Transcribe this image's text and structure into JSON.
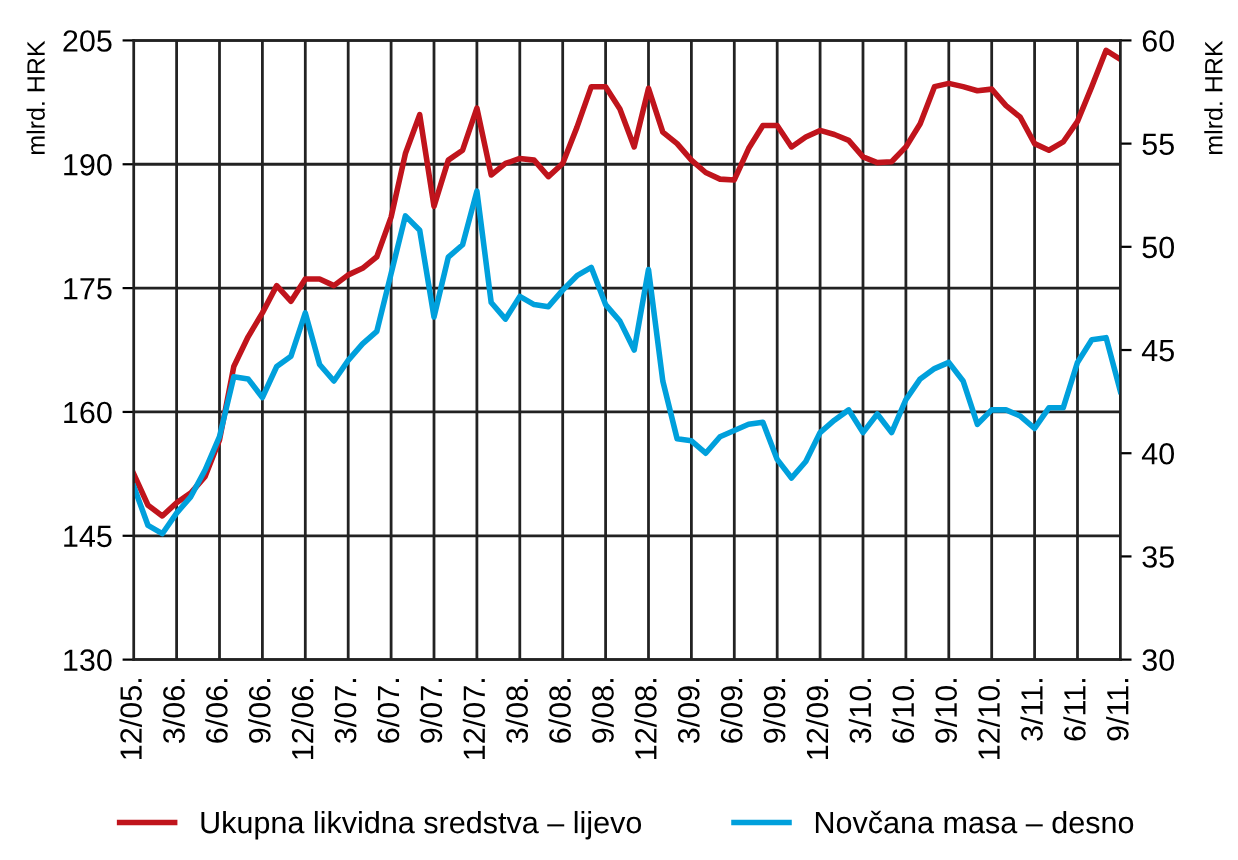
{
  "chart_data": {
    "type": "line",
    "ylabel": "mlrd. HRK",
    "y2label": "mlrd. HRK",
    "categories": [
      "12/05.",
      null,
      null,
      "3/06.",
      null,
      null,
      "6/06.",
      null,
      null,
      "9/06.",
      null,
      null,
      "12/06.",
      null,
      null,
      "3/07.",
      null,
      null,
      "6/07.",
      null,
      null,
      "9/07.",
      null,
      null,
      "12/07.",
      null,
      null,
      "3/08.",
      null,
      null,
      "6/08.",
      null,
      null,
      "9/08.",
      null,
      null,
      "12/08.",
      null,
      null,
      "3/09.",
      null,
      null,
      "6/09.",
      null,
      null,
      "9/09.",
      null,
      null,
      "12/09.",
      null,
      null,
      "3/10.",
      null,
      null,
      "6/10.",
      null,
      null,
      "9/10.",
      null,
      null,
      "12/10.",
      null,
      null,
      "3/11.",
      null,
      null,
      "6/11.",
      null,
      null,
      "9/11."
    ],
    "series": [
      {
        "name": "Ukupna likvidna sredstva – lijevo",
        "color": "#c0141c",
        "values": [
          152.5,
          148.7,
          147.4,
          149,
          150.2,
          152.2,
          156.6,
          165.5,
          169.1,
          172,
          175.3,
          173.4,
          176.1,
          176.1,
          175.3,
          176.6,
          177.4,
          178.8,
          183.6,
          191.3,
          196,
          184.9,
          190.5,
          191.7,
          196.8,
          188.7,
          190.1,
          190.7,
          190.5,
          188.5,
          190.1,
          194.5,
          199.4,
          199.4,
          196.7,
          192.1,
          199.2,
          193.9,
          192.5,
          190.5,
          189,
          188.2,
          188.1,
          191.9,
          194.7,
          194.7,
          192.1,
          193.3,
          194.1,
          193.6,
          192.9,
          190.9,
          190.2,
          190.3,
          192.1,
          194.9,
          199.4,
          199.8,
          199.4,
          198.9,
          199.1,
          197.1,
          195.7,
          192.5,
          191.7,
          192.7,
          195.2,
          199.4,
          203.8,
          202.7
        ]
      },
      {
        "name": "Novčana masa – desno",
        "color": "#00a0dc",
        "axis": "y2",
        "values": [
          38.4,
          36.5,
          36.1,
          37.1,
          37.9,
          39.2,
          40.8,
          43.7,
          43.6,
          42.7,
          44.2,
          44.7,
          46.8,
          44.3,
          43.5,
          44.5,
          45.3,
          45.9,
          48.7,
          51.5,
          50.8,
          46.6,
          49.5,
          50.1,
          52.7,
          47.3,
          46.5,
          47.6,
          47.2,
          47.1,
          47.9,
          48.6,
          49.0,
          47.2,
          46.4,
          45.0,
          48.9,
          43.5,
          40.7,
          40.6,
          40.0,
          40.8,
          41.1,
          41.4,
          41.5,
          39.7,
          38.8,
          39.6,
          41.0,
          41.6,
          42.1,
          41.0,
          41.9,
          41.0,
          42.6,
          43.6,
          44.1,
          44.4,
          43.5,
          41.4,
          42.1,
          42.1,
          41.8,
          41.2,
          42.2,
          42.2,
          44.4,
          45.5,
          45.6,
          43.0
        ]
      }
    ],
    "ylim": [
      130,
      205
    ],
    "yticks": [
      130,
      145,
      160,
      175,
      190,
      205
    ],
    "y2lim": [
      30,
      60
    ],
    "y2ticks": [
      30,
      35,
      40,
      45,
      50,
      55,
      60
    ],
    "grid": true,
    "legend": "bottom",
    "marker": "none",
    "line_style": "solid"
  }
}
